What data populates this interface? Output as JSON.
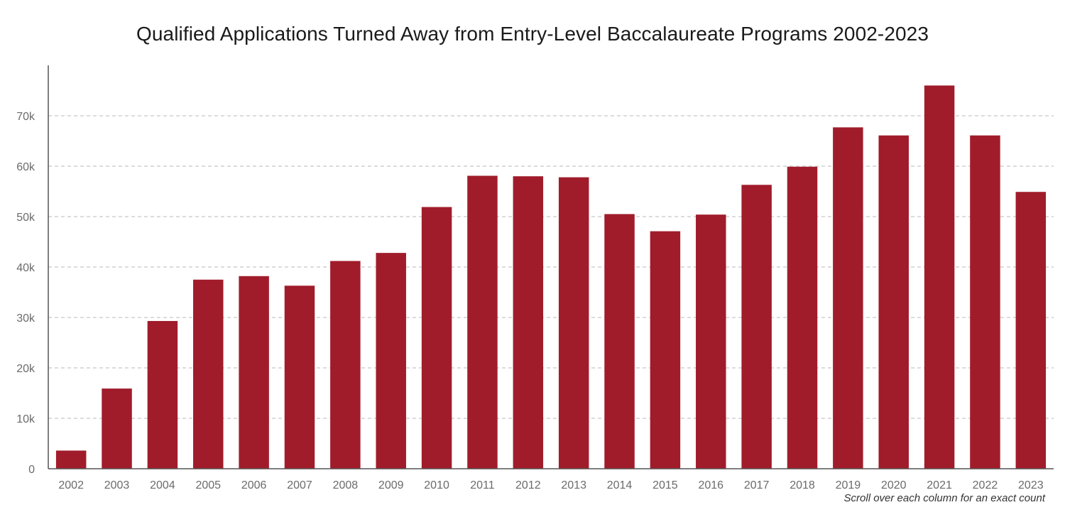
{
  "chart_data": {
    "type": "bar",
    "title": "Qualified Applications Turned Away from Entry-Level Baccalaureate Programs 2002-2023",
    "xlabel": "",
    "ylabel": "",
    "categories": [
      "2002",
      "2003",
      "2004",
      "2005",
      "2006",
      "2007",
      "2008",
      "2009",
      "2010",
      "2011",
      "2012",
      "2013",
      "2014",
      "2015",
      "2016",
      "2017",
      "2018",
      "2019",
      "2020",
      "2021",
      "2022",
      "2023"
    ],
    "values": [
      3600,
      15900,
      29300,
      37500,
      38200,
      36300,
      41200,
      42800,
      51900,
      58100,
      58000,
      57800,
      50500,
      47100,
      50400,
      56300,
      59900,
      67700,
      66100,
      76000,
      66100,
      54900
    ],
    "ylim": [
      0,
      80000
    ],
    "yticks": [
      0,
      10000,
      20000,
      30000,
      40000,
      50000,
      60000,
      70000
    ],
    "ytick_labels": [
      "0",
      "10k",
      "20k",
      "30k",
      "40k",
      "50k",
      "60k",
      "70k"
    ],
    "grid": true,
    "bar_color": "#a01c2b",
    "grid_color": "#c8c8c8",
    "axis_color": "#555555"
  },
  "footnote": "Scroll over each column for an exact count"
}
